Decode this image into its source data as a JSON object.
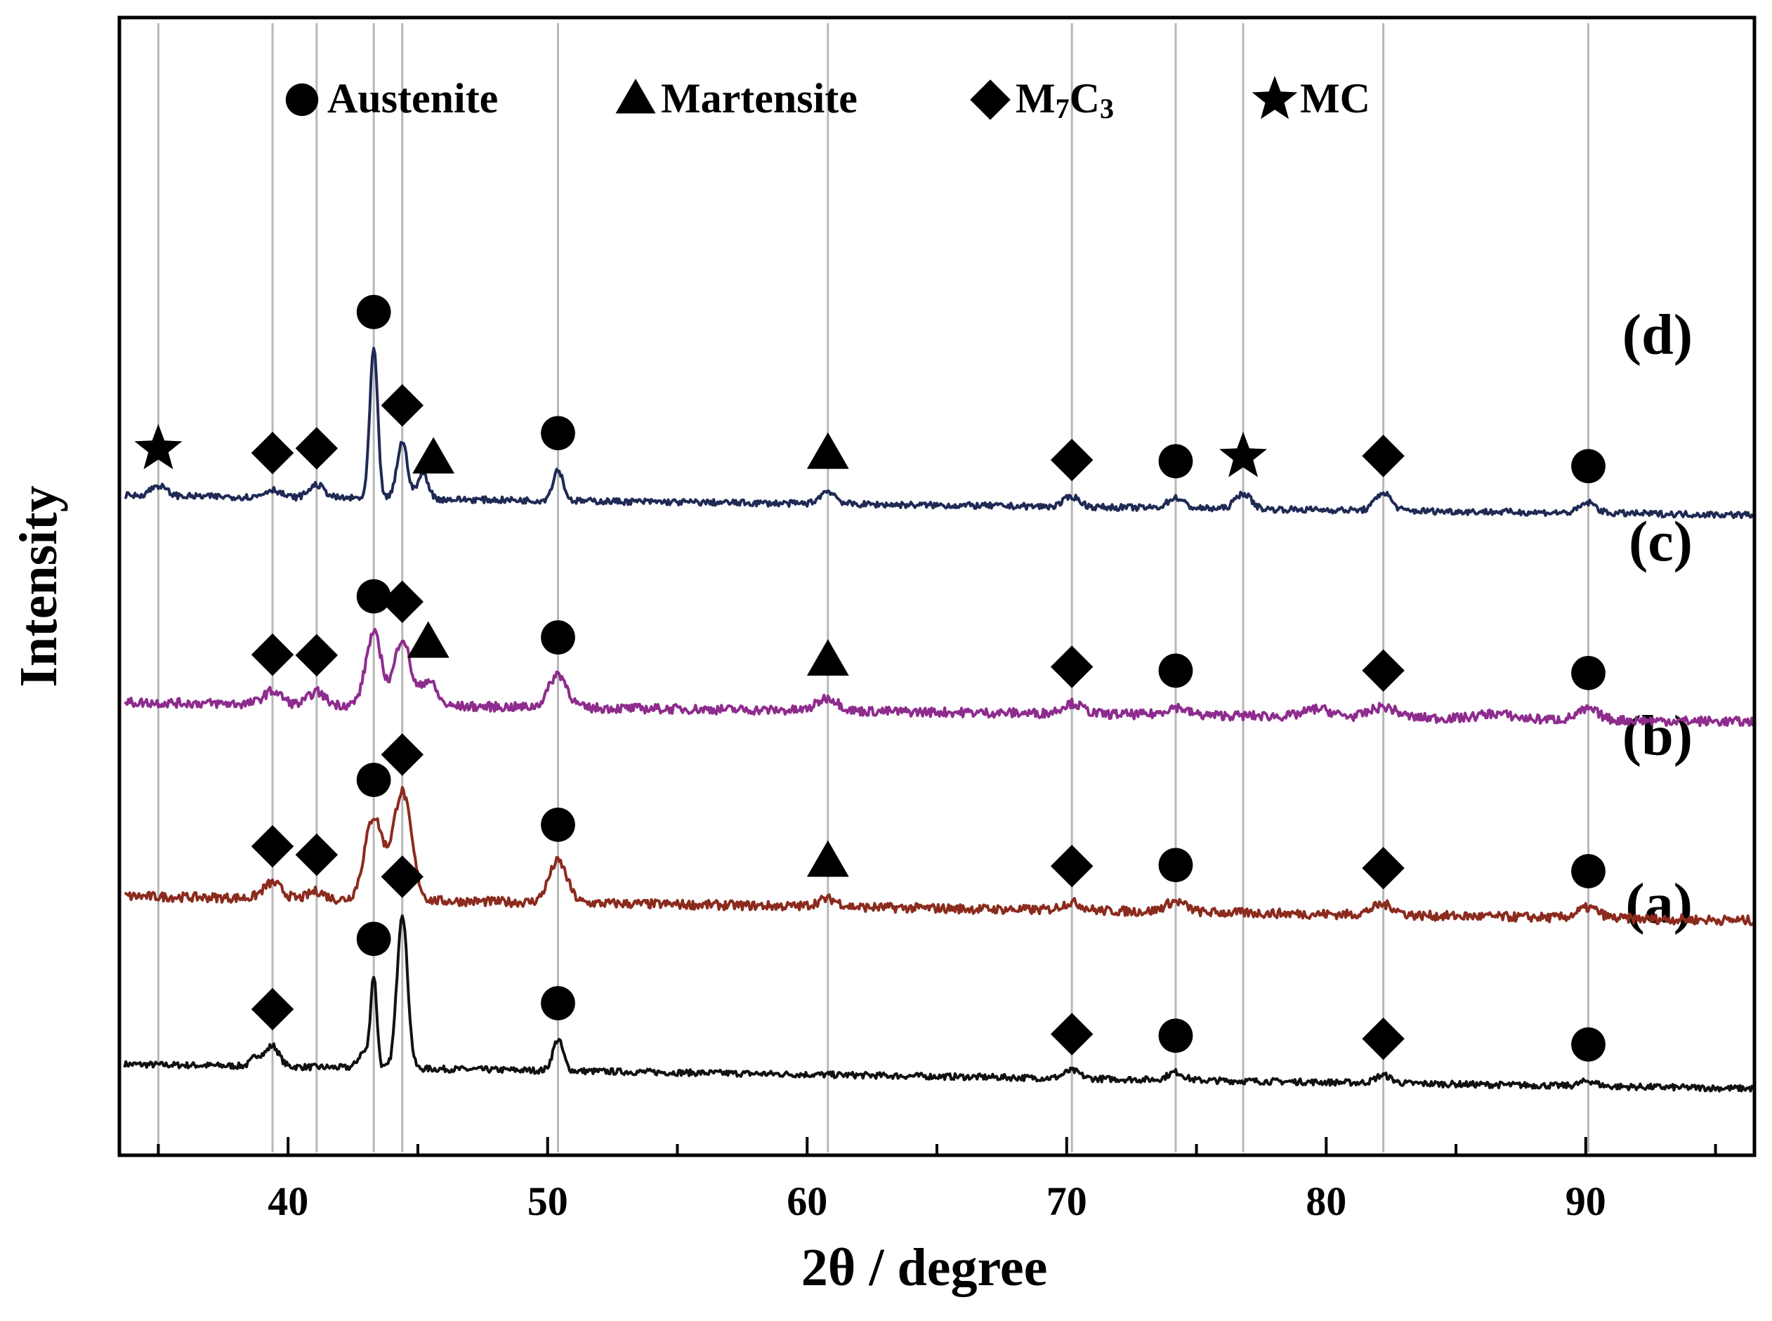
{
  "chart_data": {
    "type": "line",
    "title": "",
    "xlabel": "2θ / degree",
    "ylabel": "Intensity",
    "xlim": [
      33.5,
      96.5
    ],
    "ylim": [
      0,
      4.4
    ],
    "xticks": [
      40,
      50,
      60,
      70,
      80,
      90
    ],
    "xtick_labels": [
      "40",
      "50",
      "60",
      "70",
      "80",
      "90"
    ],
    "y_tick_labels_shown": false,
    "legend": {
      "placement": "top",
      "entries": [
        {
          "marker": "circle",
          "name": "Austenite"
        },
        {
          "marker": "triangle",
          "name": "Martensite"
        },
        {
          "marker": "diamond",
          "name": "M",
          "sub": "7",
          "name2": "C",
          "sub2": "3"
        },
        {
          "marker": "star",
          "name": "MC"
        }
      ]
    },
    "reference_lines_2theta": [
      35.0,
      39.4,
      41.1,
      43.3,
      44.4,
      50.4,
      60.8,
      70.2,
      74.2,
      76.8,
      82.2,
      90.1
    ],
    "series": [
      {
        "name": "(a)",
        "label": "(a)",
        "color": "#111111",
        "offset": 0.35,
        "slope": -0.0015,
        "noise": 0.012,
        "peaks": [
          [
            38.8,
            0.04,
            0.2
          ],
          [
            39.4,
            0.08,
            0.25
          ],
          [
            42.9,
            0.06,
            0.2
          ],
          [
            43.3,
            0.35,
            0.12
          ],
          [
            44.4,
            0.6,
            0.2
          ],
          [
            50.4,
            0.12,
            0.2
          ],
          [
            70.2,
            0.03,
            0.3
          ],
          [
            74.2,
            0.03,
            0.3
          ],
          [
            82.2,
            0.03,
            0.3
          ],
          [
            90.1,
            0.02,
            0.3
          ]
        ],
        "markers": [
          {
            "type": "diamond",
            "x": 39.4
          },
          {
            "type": "circle",
            "x": 43.3
          },
          {
            "type": "diamond",
            "x": 44.4
          },
          {
            "type": "circle",
            "x": 50.4
          },
          {
            "type": "diamond",
            "x": 70.2
          },
          {
            "type": "circle",
            "x": 74.2
          },
          {
            "type": "diamond",
            "x": 82.2
          },
          {
            "type": "circle",
            "x": 90.1
          }
        ]
      },
      {
        "name": "(b)",
        "label": "(b)",
        "color": "#8b2b1e",
        "offset": 1.0,
        "slope": -0.0015,
        "noise": 0.018,
        "peaks": [
          [
            39.4,
            0.06,
            0.35
          ],
          [
            41.1,
            0.03,
            0.3
          ],
          [
            43.3,
            0.32,
            0.35
          ],
          [
            44.4,
            0.42,
            0.35
          ],
          [
            50.4,
            0.16,
            0.35
          ],
          [
            60.8,
            0.03,
            0.4
          ],
          [
            70.2,
            0.03,
            0.4
          ],
          [
            74.2,
            0.04,
            0.4
          ],
          [
            82.2,
            0.04,
            0.45
          ],
          [
            90.1,
            0.04,
            0.4
          ]
        ],
        "markers": [
          {
            "type": "diamond",
            "x": 39.4
          },
          {
            "type": "diamond",
            "x": 41.1
          },
          {
            "type": "circle",
            "x": 43.3
          },
          {
            "type": "diamond",
            "x": 44.4
          },
          {
            "type": "circle",
            "x": 50.4
          },
          {
            "type": "triangle",
            "x": 60.8
          },
          {
            "type": "diamond",
            "x": 70.2
          },
          {
            "type": "circle",
            "x": 74.2
          },
          {
            "type": "diamond",
            "x": 82.2
          },
          {
            "type": "circle",
            "x": 90.1
          }
        ]
      },
      {
        "name": "(c)",
        "label": "(c)",
        "color": "#8e2c8e",
        "offset": 1.75,
        "slope": -0.0012,
        "noise": 0.018,
        "peaks": [
          [
            39.4,
            0.05,
            0.35
          ],
          [
            41.1,
            0.05,
            0.3
          ],
          [
            43.3,
            0.28,
            0.3
          ],
          [
            44.4,
            0.26,
            0.3
          ],
          [
            45.4,
            0.1,
            0.3
          ],
          [
            50.4,
            0.13,
            0.35
          ],
          [
            60.8,
            0.05,
            0.4
          ],
          [
            70.2,
            0.04,
            0.4
          ],
          [
            74.2,
            0.03,
            0.4
          ],
          [
            79.7,
            0.03,
            0.5
          ],
          [
            82.2,
            0.04,
            0.5
          ],
          [
            86.5,
            0.02,
            0.6
          ],
          [
            90.1,
            0.04,
            0.4
          ]
        ],
        "markers": [
          {
            "type": "diamond",
            "x": 39.4
          },
          {
            "type": "diamond",
            "x": 41.1
          },
          {
            "type": "circle",
            "x": 43.3
          },
          {
            "type": "diamond",
            "x": 44.4
          },
          {
            "type": "triangle",
            "x": 45.4
          },
          {
            "type": "circle",
            "x": 50.4
          },
          {
            "type": "triangle",
            "x": 60.8
          },
          {
            "type": "diamond",
            "x": 70.2
          },
          {
            "type": "circle",
            "x": 74.2
          },
          {
            "type": "diamond",
            "x": 82.2
          },
          {
            "type": "circle",
            "x": 90.1
          }
        ]
      },
      {
        "name": "(d)",
        "label": "(d)",
        "color": "#1f2a55",
        "offset": 2.55,
        "slope": -0.0012,
        "noise": 0.012,
        "peaks": [
          [
            35.0,
            0.04,
            0.3
          ],
          [
            39.4,
            0.03,
            0.3
          ],
          [
            41.1,
            0.05,
            0.3
          ],
          [
            43.3,
            0.58,
            0.15
          ],
          [
            44.4,
            0.22,
            0.2
          ],
          [
            45.2,
            0.1,
            0.2
          ],
          [
            50.4,
            0.12,
            0.2
          ],
          [
            60.8,
            0.05,
            0.3
          ],
          [
            70.2,
            0.04,
            0.3
          ],
          [
            74.2,
            0.04,
            0.3
          ],
          [
            76.8,
            0.06,
            0.3
          ],
          [
            82.2,
            0.07,
            0.3
          ],
          [
            90.1,
            0.04,
            0.3
          ]
        ],
        "markers": [
          {
            "type": "star",
            "x": 35.0
          },
          {
            "type": "diamond",
            "x": 39.4
          },
          {
            "type": "diamond",
            "x": 41.1
          },
          {
            "type": "circle",
            "x": 43.3
          },
          {
            "type": "diamond",
            "x": 44.4
          },
          {
            "type": "triangle",
            "x": 45.6
          },
          {
            "type": "circle",
            "x": 50.4
          },
          {
            "type": "triangle",
            "x": 60.8
          },
          {
            "type": "diamond",
            "x": 70.2
          },
          {
            "type": "circle",
            "x": 74.2
          },
          {
            "type": "star",
            "x": 76.8
          },
          {
            "type": "diamond",
            "x": 82.2
          },
          {
            "type": "circle",
            "x": 90.1
          }
        ]
      }
    ]
  }
}
